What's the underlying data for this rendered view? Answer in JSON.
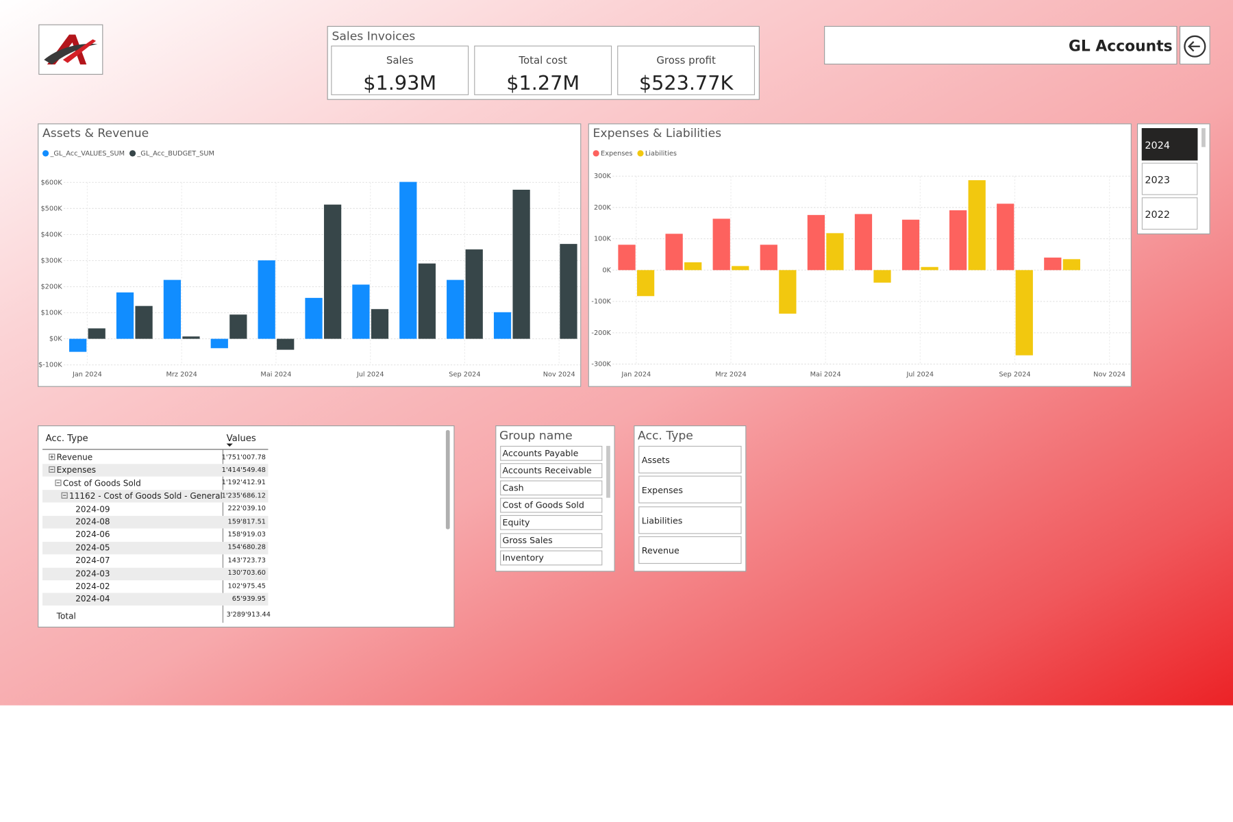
{
  "header": {
    "title": "GL Accounts"
  },
  "kpi": {
    "title": "Sales Invoices",
    "cards": [
      {
        "label": "Sales",
        "value": "$1.93M"
      },
      {
        "label": "Total cost",
        "value": "$1.27M"
      },
      {
        "label": "Gross profit",
        "value": "$523.77K"
      }
    ]
  },
  "chart_data": [
    {
      "type": "bar",
      "title": "Assets & Revenue",
      "legend": "top-left",
      "grid": true,
      "categories": [
        "Jan 2024",
        null,
        "Mrz 2024",
        null,
        "Mai 2024",
        null,
        "Jul 2024",
        null,
        "Sep 2024",
        null,
        "Nov 2024"
      ],
      "series": [
        {
          "name": "_GL_Acc_VALUES_SUM",
          "color": "#118dff",
          "values": [
            -50000,
            178000,
            226000,
            -36000,
            301000,
            157000,
            208000,
            602000,
            226000,
            102000,
            null
          ]
        },
        {
          "name": "_GL_Acc_BUDGET_SUM",
          "color": "#374649",
          "values": [
            40000,
            126000,
            9000,
            93000,
            -42000,
            515000,
            114000,
            289000,
            343000,
            572000,
            364000
          ]
        }
      ],
      "ylim": [
        -100000,
        600000
      ],
      "yticks": [
        {
          "value": -100000,
          "label": "$-100K"
        },
        {
          "value": 0,
          "label": "$0K"
        },
        {
          "value": 100000,
          "label": "$100K"
        },
        {
          "value": 200000,
          "label": "$200K"
        },
        {
          "value": 300000,
          "label": "$300K"
        },
        {
          "value": 400000,
          "label": "$400K"
        },
        {
          "value": 500000,
          "label": "$500K"
        },
        {
          "value": 600000,
          "label": "$600K"
        }
      ]
    },
    {
      "type": "bar",
      "title": "Expenses & Liabilities",
      "legend": "top-left",
      "grid": true,
      "categories": [
        "Jan 2024",
        null,
        "Mrz 2024",
        null,
        "Mai 2024",
        null,
        "Jul 2024",
        null,
        "Sep 2024",
        null,
        "Nov 2024"
      ],
      "series": [
        {
          "name": "Expenses",
          "color": "#fd625e",
          "values": [
            81000,
            116000,
            164000,
            81000,
            176000,
            179000,
            161000,
            191000,
            212000,
            40000,
            null
          ]
        },
        {
          "name": "Liabilities",
          "color": "#f2c80f",
          "values": [
            -83000,
            25000,
            13000,
            -139000,
            118000,
            -40000,
            10000,
            287000,
            -272000,
            35000,
            null
          ]
        }
      ],
      "ylim": [
        -300000,
        300000
      ],
      "yticks": [
        {
          "value": -300000,
          "label": "-300K"
        },
        {
          "value": -200000,
          "label": "-200K"
        },
        {
          "value": -100000,
          "label": "-100K"
        },
        {
          "value": 0,
          "label": "0K"
        },
        {
          "value": 100000,
          "label": "100K"
        },
        {
          "value": 200000,
          "label": "200K"
        },
        {
          "value": 300000,
          "label": "300K"
        }
      ]
    }
  ],
  "year_slicer": {
    "items": [
      {
        "label": "2024",
        "selected": true
      },
      {
        "label": "2023",
        "selected": false
      },
      {
        "label": "2022",
        "selected": false
      }
    ]
  },
  "table": {
    "columns": [
      "Acc. Type",
      "Values"
    ],
    "rows": [
      {
        "label": "Revenue",
        "value": "1'751'007.78",
        "level": 0,
        "expanded": false
      },
      {
        "label": "Expenses",
        "value": "1'414'549.48",
        "level": 0,
        "expanded": true
      },
      {
        "label": "Cost of Goods Sold",
        "value": "1'192'412.91",
        "level": 1,
        "expanded": true
      },
      {
        "label": "11162 - Cost of Goods Sold - General",
        "value": "1'235'686.12",
        "level": 2,
        "expanded": true
      },
      {
        "label": "2024-09",
        "value": "222'039.10",
        "level": 3
      },
      {
        "label": "2024-08",
        "value": "159'817.51",
        "level": 3
      },
      {
        "label": "2024-06",
        "value": "158'919.03",
        "level": 3
      },
      {
        "label": "2024-05",
        "value": "154'680.28",
        "level": 3
      },
      {
        "label": "2024-07",
        "value": "143'723.73",
        "level": 3
      },
      {
        "label": "2024-03",
        "value": "130'703.60",
        "level": 3
      },
      {
        "label": "2024-02",
        "value": "102'975.45",
        "level": 3
      },
      {
        "label": "2024-04",
        "value": "65'939.95",
        "level": 3
      }
    ],
    "total": {
      "label": "Total",
      "value": "3'289'913.44"
    }
  },
  "group_slicer": {
    "title": "Group name",
    "items": [
      "Accounts Payable",
      "Accounts Receivable",
      "Cash",
      "Cost of Goods Sold",
      "Equity",
      "Gross Sales",
      "Inventory"
    ]
  },
  "type_slicer": {
    "title": "Acc. Type",
    "items": [
      "Assets",
      "Expenses",
      "Liabilities",
      "Revenue"
    ]
  }
}
